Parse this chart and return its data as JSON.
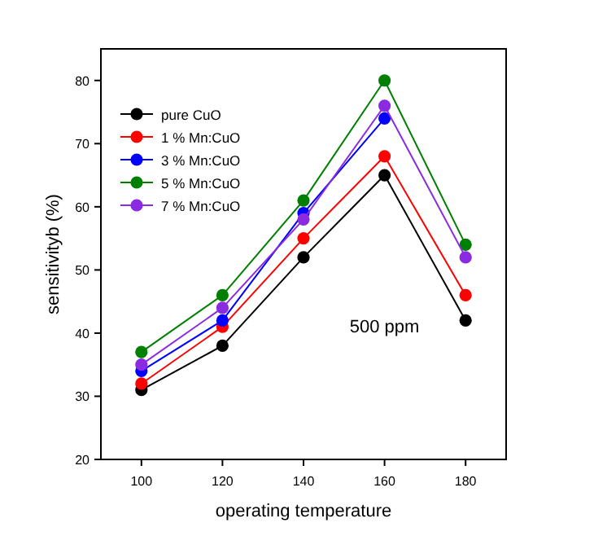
{
  "chart_data": {
    "type": "line",
    "xlabel": "operating temperature",
    "ylabel": "sensitivityb (%)",
    "x": [
      100,
      120,
      140,
      160,
      180
    ],
    "xlim": [
      90,
      190
    ],
    "xticks": [
      100,
      120,
      140,
      160,
      180
    ],
    "ylim": [
      20,
      85
    ],
    "yticks": [
      20,
      30,
      40,
      50,
      60,
      70,
      80
    ],
    "marker": "circle",
    "legend": "top left",
    "grid": false,
    "annotations": [
      "500 ppm"
    ],
    "series": [
      {
        "name": "pure CuO",
        "color": "#000000",
        "values": [
          31,
          38,
          52,
          65,
          42
        ]
      },
      {
        "name": "1 % Mn:CuO",
        "color": "#ff0000",
        "values": [
          32,
          41,
          55,
          68,
          46
        ]
      },
      {
        "name": "3 % Mn:CuO",
        "color": "#0000ff",
        "values": [
          34,
          42,
          59,
          74,
          null
        ]
      },
      {
        "name": "5 % Mn:CuO",
        "color": "#007f00",
        "values": [
          37,
          46,
          61,
          80,
          54
        ]
      },
      {
        "name": "7 % Mn:CuO",
        "color": "#8a2be2",
        "values": [
          35,
          44,
          58,
          76,
          52
        ]
      }
    ]
  }
}
